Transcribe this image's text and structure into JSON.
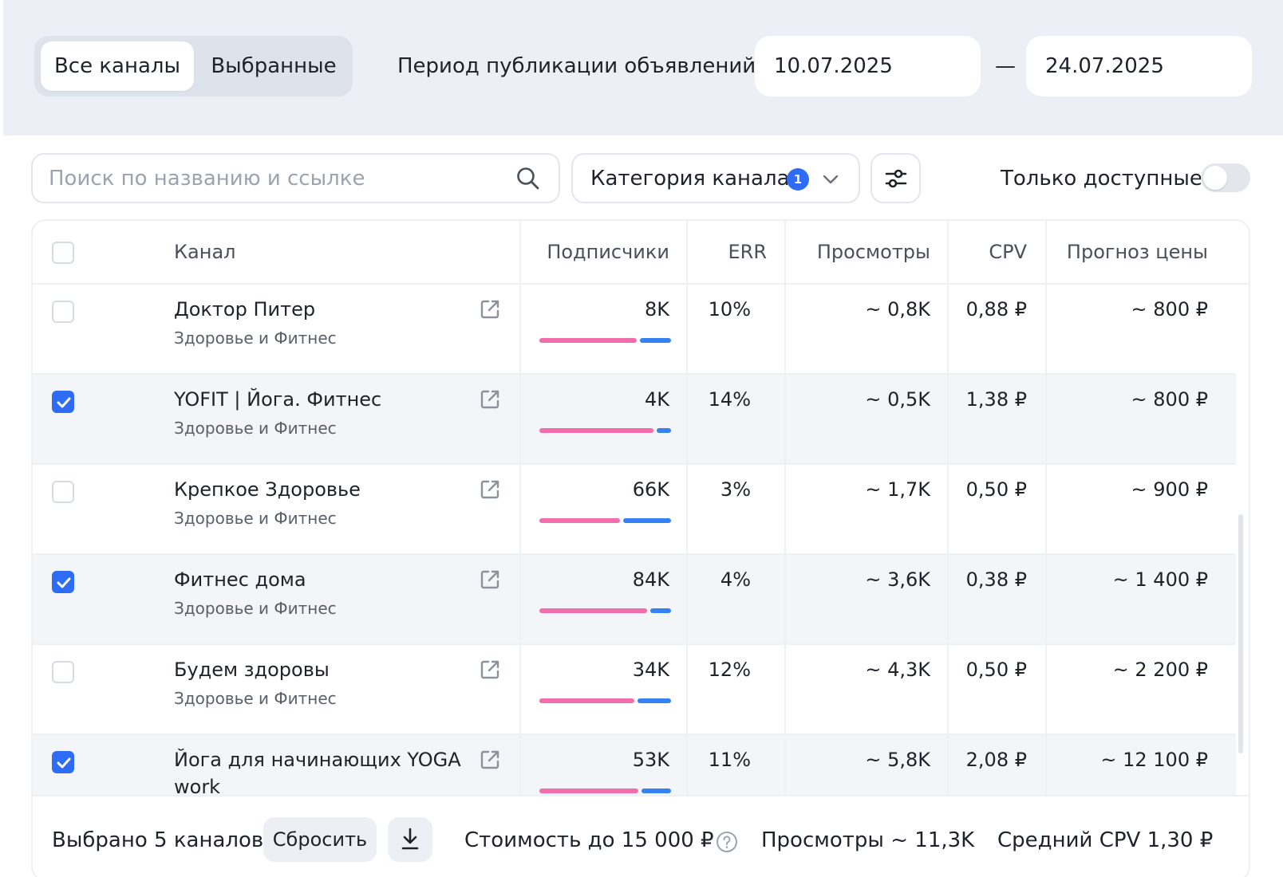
{
  "tabs": {
    "all": "Все каналы",
    "selected": "Выбранные"
  },
  "period": {
    "label": "Период публикации объявлений",
    "from": "10.07.2025",
    "dash": "—",
    "to": "24.07.2025"
  },
  "search": {
    "placeholder": "Поиск по названию и ссылке",
    "icon": "search-icon"
  },
  "category_filter": {
    "label": "Категория канала",
    "badge": "1"
  },
  "only_available": {
    "label": "Только доступные",
    "enabled": false
  },
  "table": {
    "headers": {
      "channel": "Канал",
      "subscribers": "Подписчики",
      "err": "ERR",
      "views": "Просмотры",
      "cpv": "CPV",
      "price": "Прогноз цены"
    },
    "rows": [
      {
        "name": "Доктор Питер",
        "category": "Здоровье и Фитнес",
        "subscribers": "8K",
        "err": "10%",
        "views": "~ 0,8K",
        "cpv": "0,88 ₽",
        "price": "~ 800 ₽",
        "checked": false,
        "bar_pink_fraction": 0.76,
        "bar_blue_fraction": 0.24
      },
      {
        "name": "YOFIT | Йога. Фитнес",
        "category": "Здоровье и Фитнес",
        "subscribers": "4K",
        "err": "14%",
        "views": "~ 0,5K",
        "cpv": "1,38 ₽",
        "price": "~ 800 ₽",
        "checked": true,
        "bar_pink_fraction": 0.89,
        "bar_blue_fraction": 0.11
      },
      {
        "name": "Крепкое Здоровье",
        "category": "Здоровье и Фитнес",
        "subscribers": "66K",
        "err": "3%",
        "views": "~ 1,7K",
        "cpv": "0,50 ₽",
        "price": "~ 900 ₽",
        "checked": false,
        "bar_pink_fraction": 0.63,
        "bar_blue_fraction": 0.37
      },
      {
        "name": "Фитнес дома",
        "category": "Здоровье и Фитнес",
        "subscribers": "84K",
        "err": "4%",
        "views": "~ 3,6K",
        "cpv": "0,38 ₽",
        "price": "~ 1 400 ₽",
        "checked": true,
        "bar_pink_fraction": 0.84,
        "bar_blue_fraction": 0.16
      },
      {
        "name": "Будем здоровы",
        "category": "Здоровье и Фитнес",
        "subscribers": "34K",
        "err": "12%",
        "views": "~ 4,3K",
        "cpv": "0,50 ₽",
        "price": "~ 2 200 ₽",
        "checked": false,
        "bar_pink_fraction": 0.74,
        "bar_blue_fraction": 0.26
      },
      {
        "name": "Йога для начинающих YOGA work",
        "category": "",
        "subscribers": "53K",
        "err": "11%",
        "views": "~ 5,8K",
        "cpv": "2,08 ₽",
        "price": "~ 12 100 ₽",
        "checked": true,
        "bar_pink_fraction": 0.77,
        "bar_blue_fraction": 0.23
      }
    ]
  },
  "footer": {
    "selected": "Выбрано 5 каналов",
    "reset": "Сбросить",
    "cost": "Стоимость до 15 000 ₽",
    "views": "Просмотры ~ 11,3K",
    "avg_cpv": "Средний CPV 1,30 ₽"
  },
  "colors": {
    "accent": "#2e6cf6",
    "bar_pink": "#f26dab",
    "bar_blue": "#3682f2",
    "top_bg": "#eceff5"
  }
}
